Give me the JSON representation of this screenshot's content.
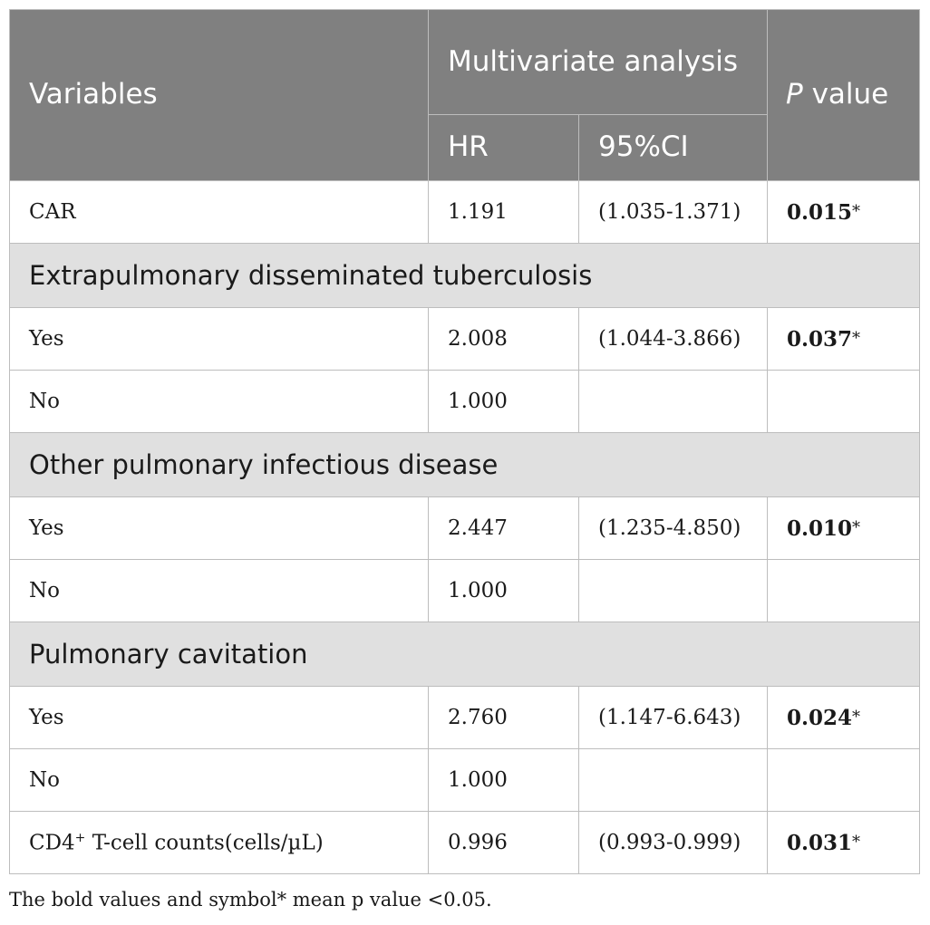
{
  "header": {
    "variables": "Variables",
    "multivariate": "Multivariate analysis",
    "hr": "HR",
    "ci": "95%CI",
    "p_italic": "P",
    "p_rest": " value"
  },
  "rows": {
    "car": {
      "label": "CAR",
      "hr": "1.191",
      "ci": "(1.035-1.371)",
      "p": "0.015",
      "star": "*"
    },
    "extra_group": "Extrapulmonary disseminated tuberculosis",
    "extra_yes": {
      "label": "Yes",
      "hr": "2.008",
      "ci": "(1.044-3.866)",
      "p": "0.037",
      "star": "*"
    },
    "extra_no": {
      "label": "No",
      "hr": "1.000"
    },
    "other_group": "Other pulmonary infectious disease",
    "other_yes": {
      "label": "Yes",
      "hr": "2.447",
      "ci": "(1.235-4.850)",
      "p": "0.010",
      "star": "*"
    },
    "other_no": {
      "label": "No",
      "hr": "1.000"
    },
    "cav_group": "Pulmonary cavitation",
    "cav_yes": {
      "label": "Yes",
      "hr": "2.760",
      "ci": "(1.147-6.643)",
      "p": "0.024",
      "star": "*"
    },
    "cav_no": {
      "label": "No",
      "hr": "1.000"
    },
    "cd4": {
      "label_pre": "CD4",
      "label_sup": "+",
      "label_post": " T-cell counts(cells/µL)",
      "hr": "0.996",
      "ci": "(0.993-0.999)",
      "p": "0.031",
      "star": "*"
    }
  },
  "footnote": "The bold values and symbol* mean p value <0.05."
}
